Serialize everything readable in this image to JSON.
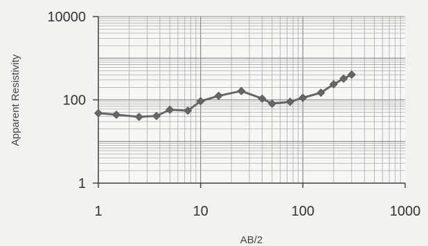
{
  "chart_data": {
    "type": "line",
    "xlabel": "AB/2",
    "ylabel": "Apparent Resistivity",
    "x_scale": "log",
    "y_scale": "log",
    "xlim": [
      1,
      1000
    ],
    "ylim": [
      1,
      10000
    ],
    "x_ticks": [
      1,
      10,
      100,
      1000
    ],
    "y_ticks": [
      1,
      100,
      10000
    ],
    "x_tick_labels": [
      "1",
      "10",
      "100",
      "1000"
    ],
    "y_tick_labels": [
      "1",
      "100",
      "10000"
    ],
    "grid": true,
    "legend": "none",
    "series": [
      {
        "marker": "diamond",
        "color": "#666666",
        "x": [
          1,
          1.5,
          2.5,
          3.7,
          5,
          7.5,
          10,
          15,
          25,
          40,
          50,
          75,
          100,
          150,
          200,
          250,
          300
        ],
        "y": [
          48,
          44,
          39,
          41,
          58,
          55,
          93,
          125,
          163,
          107,
          81,
          90,
          112,
          148,
          237,
          323,
          403
        ]
      }
    ]
  }
}
